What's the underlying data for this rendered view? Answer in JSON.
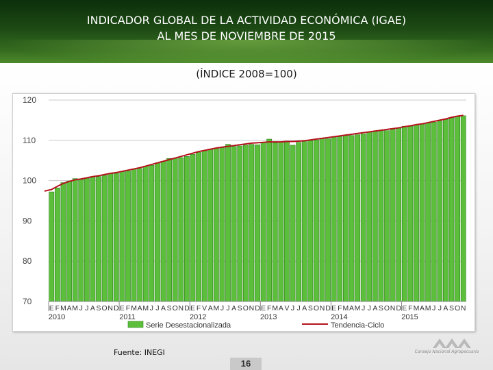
{
  "header": {
    "title_line1": "INDICADOR GLOBAL DE LA ACTIVIDAD ECONÓMICA (IGAE)",
    "title_line2": "AL MES DE NOVIEMBRE DE 2015"
  },
  "subtitle": "(ÍNDICE 2008=100)",
  "footer": {
    "source": "Fuente: INEGI",
    "page_number": "16",
    "logo_caption": "Consejo Nacional Agropecuario"
  },
  "colors": {
    "bar_fill": "#5bbf3c",
    "bar_edge": "#2f7d1c",
    "trend_line": "#b3131a",
    "grid": "#c8c8c8",
    "header_dark": "#1d4a14"
  },
  "chart_data": {
    "type": "bar",
    "title": "",
    "xlabel": "",
    "ylabel": "",
    "ylim": [
      70,
      120
    ],
    "yticks": [
      70,
      80,
      90,
      100,
      110,
      120
    ],
    "month_labels": [
      "E",
      "F",
      "M",
      "A",
      "M",
      "J",
      "J",
      "A",
      "S",
      "O",
      "N",
      "D",
      "E",
      "F",
      "M",
      "A",
      "M",
      "J",
      "J",
      "A",
      "S",
      "O",
      "N",
      "D",
      "E",
      "F",
      "V",
      "A",
      "M",
      "J",
      "J",
      "A",
      "S",
      "O",
      "N",
      "D",
      "E",
      "F",
      "M",
      "A",
      "V",
      "J",
      "J",
      "A",
      "S",
      "O",
      "N",
      "D",
      "E",
      "F",
      "M",
      "A",
      "M",
      "J",
      "J",
      "A",
      "S",
      "O",
      "N",
      "D",
      "E",
      "F",
      "M",
      "A",
      "M",
      "J",
      "J",
      "A",
      "S",
      "O",
      "N"
    ],
    "year_labels": [
      "2010",
      "2011",
      "2012",
      "2013",
      "2014",
      "2015"
    ],
    "series": [
      {
        "name": "Serie Desestacionalizada",
        "type": "bar",
        "values": [
          97.2,
          98.2,
          99.5,
          99.9,
          100.5,
          100.3,
          100.6,
          101.0,
          101.0,
          101.3,
          101.7,
          101.8,
          102.2,
          102.4,
          102.9,
          103.0,
          103.6,
          103.8,
          104.4,
          104.8,
          105.5,
          105.6,
          105.7,
          106.0,
          106.5,
          107.0,
          107.4,
          107.8,
          108.0,
          108.2,
          109.0,
          108.5,
          108.6,
          108.8,
          109.0,
          108.9,
          109.5,
          110.3,
          109.4,
          109.5,
          109.8,
          108.8,
          109.5,
          109.7,
          109.9,
          110.1,
          110.4,
          110.4,
          110.8,
          110.9,
          111.2,
          111.2,
          111.4,
          111.6,
          112.1,
          112.2,
          112.4,
          112.4,
          112.7,
          113.0,
          113.5,
          113.5,
          113.9,
          114.0,
          114.3,
          114.5,
          114.8,
          115.2,
          115.7,
          116.0,
          116.1
        ]
      },
      {
        "name": "Tendencia-Ciclo",
        "type": "line",
        "values": [
          97.8,
          98.6,
          99.3,
          99.8,
          100.2,
          100.4,
          100.7,
          101.0,
          101.2,
          101.5,
          101.8,
          102.0,
          102.3,
          102.6,
          102.9,
          103.2,
          103.6,
          104.0,
          104.4,
          104.8,
          105.2,
          105.6,
          106.0,
          106.4,
          106.8,
          107.2,
          107.5,
          107.8,
          108.1,
          108.3,
          108.5,
          108.7,
          108.9,
          109.1,
          109.3,
          109.4,
          109.5,
          109.6,
          109.6,
          109.6,
          109.7,
          109.7,
          109.8,
          109.9,
          110.1,
          110.3,
          110.5,
          110.7,
          110.9,
          111.1,
          111.3,
          111.5,
          111.7,
          111.9,
          112.1,
          112.3,
          112.5,
          112.7,
          112.9,
          113.1,
          113.4,
          113.6,
          113.9,
          114.1,
          114.4,
          114.7,
          115.0,
          115.3,
          115.7,
          116.0,
          116.2
        ]
      }
    ],
    "legend": {
      "position": "bottom",
      "entries": [
        "Serie Desestacionalizada",
        "Tendencia-Ciclo"
      ]
    }
  }
}
